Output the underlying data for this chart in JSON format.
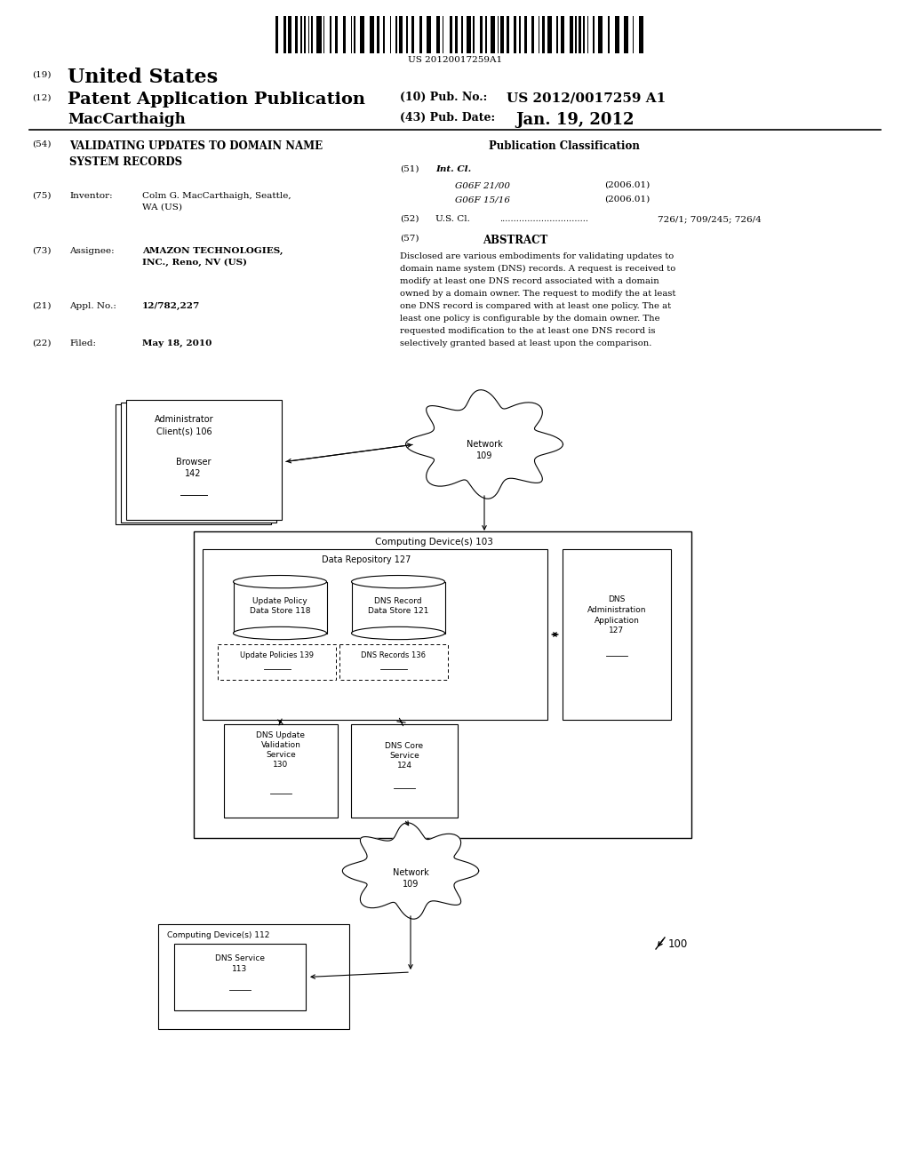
{
  "bg_color": "#ffffff",
  "barcode_text": "US 20120017259A1",
  "header_left1": "(19)",
  "header_left1_text": "United States",
  "header_left2": "(12)",
  "header_left2_text": "Patent Application Publication",
  "header_left3": "MacCarthaigh",
  "header_right1_label": "(10) Pub. No.:",
  "header_right1_val": "US 2012/0017259 A1",
  "header_right2_label": "(43) Pub. Date:",
  "header_right2_val": "Jan. 19, 2012",
  "fields": [
    {
      "tag": "(54)",
      "col_label": "",
      "col_val": "VALIDATING UPDATES TO DOMAIN NAME\nSYSTEM RECORDS",
      "bold_val": true
    },
    {
      "tag": "(75)",
      "col_label": "Inventor:",
      "col_val": "Colm G. MacCarthaigh, Seattle,\nWA (US)",
      "bold_val": false
    },
    {
      "tag": "(73)",
      "col_label": "Assignee:",
      "col_val": "AMAZON TECHNOLOGIES,\nINC., Reno, NV (US)",
      "bold_val": true
    },
    {
      "tag": "(21)",
      "col_label": "Appl. No.:",
      "col_val": "12/782,227",
      "bold_val": true
    },
    {
      "tag": "(22)",
      "col_label": "Filed:",
      "col_val": "May 18, 2010",
      "bold_val": true
    }
  ],
  "pub_class_title": "Publication Classification",
  "int_cl_label": "Int. Cl.",
  "int_cl_tag": "(51)",
  "int_cl_codes": [
    "G06F 21/00",
    "G06F 15/16"
  ],
  "int_cl_years": [
    "(2006.01)",
    "(2006.01)"
  ],
  "us_cl_tag": "(52)",
  "us_cl_label": "U.S. Cl.",
  "us_cl_dots": "................................",
  "us_cl_val": "726/1; 709/245; 726/4",
  "abstract_tag": "(57)",
  "abstract_label": "ABSTRACT",
  "abstract_text": "Disclosed are various embodiments for validating updates to domain name system (DNS) records. A request is received to modify at least one DNS record associated with a domain owned by a domain owner. The request to modify the at least one DNS record is compared with at least one policy. The at least one policy is configurable by the domain owner. The requested modification to the at least one DNS record is selectively granted based at least upon the comparison.",
  "diag_admin_label": "Administrator\nClient(s) 106",
  "diag_browser_label": "Browser\n142",
  "diag_net1_label": "Network\n109",
  "diag_cd103_label": "Computing Device(s) 103",
  "diag_datarepo_label": "Data Repository 127",
  "diag_upolicy_label": "Update Policy\nData Store 118",
  "diag_dnsrec_label": "DNS Record\nData Store 121",
  "diag_updpol_label": "Update Policies 139",
  "diag_dnsrecs_label": "DNS Records 136",
  "diag_dnsadmin_label": "DNS\nAdministration\nApplication\n127",
  "diag_dnsupd_label": "DNS Update\nValidation\nService\n130",
  "diag_dnscore_label": "DNS Core\nService\n124",
  "diag_net2_label": "Network\n109",
  "diag_cd112_label": "Computing Device(s) 112",
  "diag_dnssvc_label": "DNS Service\n113",
  "diag_ref": "100"
}
